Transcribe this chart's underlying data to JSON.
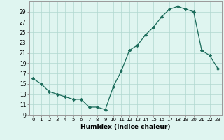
{
  "x": [
    0,
    1,
    2,
    3,
    4,
    5,
    6,
    7,
    8,
    9,
    10,
    11,
    12,
    13,
    14,
    15,
    16,
    17,
    18,
    19,
    20,
    21,
    22,
    23
  ],
  "y": [
    16.0,
    15.0,
    13.5,
    13.0,
    12.5,
    12.0,
    12.0,
    10.5,
    10.5,
    10.0,
    14.5,
    17.5,
    21.5,
    22.5,
    24.5,
    26.0,
    28.0,
    29.5,
    30.0,
    29.5,
    29.0,
    21.5,
    20.5,
    18.0
  ],
  "line_color": "#1a6b5a",
  "marker": "D",
  "marker_size": 2.2,
  "bg_color": "#dff5f0",
  "grid_color": "#b0d8d0",
  "xlabel": "Humidex (Indice chaleur)",
  "ylim": [
    9,
    31
  ],
  "xlim": [
    -0.5,
    23.5
  ],
  "yticks": [
    9,
    11,
    13,
    15,
    17,
    19,
    21,
    23,
    25,
    27,
    29
  ],
  "xticks": [
    0,
    1,
    2,
    3,
    4,
    5,
    6,
    7,
    8,
    9,
    10,
    11,
    12,
    13,
    14,
    15,
    16,
    17,
    18,
    19,
    20,
    21,
    22,
    23
  ]
}
